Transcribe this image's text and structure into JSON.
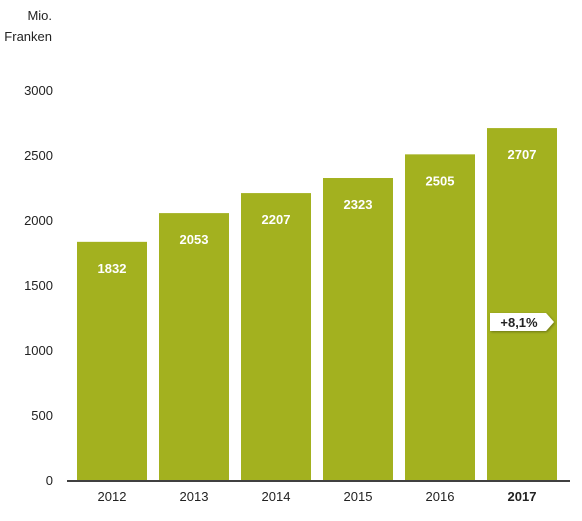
{
  "chart_data": {
    "type": "bar",
    "title": "",
    "ylabel": "Mio.\nFranken",
    "ylabel_lines": [
      "Mio.",
      "Franken"
    ],
    "xlabel": "",
    "categories": [
      "2012",
      "2013",
      "2014",
      "2015",
      "2016",
      "2017"
    ],
    "values": [
      1832,
      2053,
      2207,
      2323,
      2505,
      2707
    ],
    "data_labels": [
      "1832",
      "2053",
      "2207",
      "2323",
      "2505",
      "2707"
    ],
    "ylim": [
      0,
      3000
    ],
    "yticks": [
      0,
      500,
      1000,
      1500,
      2000,
      2500,
      3000
    ],
    "ytick_labels": [
      "0",
      "500",
      "1000",
      "1500",
      "2000",
      "2500",
      "3000"
    ],
    "highlighted_category": "2017",
    "grid": false,
    "legend": "none",
    "annotation": {
      "text": "+8,1%",
      "category": "2017"
    },
    "colors": {
      "bar": "#a3b11f",
      "bar_label": "#ffffff",
      "axis": "#000000",
      "tick_label": "#222222",
      "badge_bg": "#ffffff",
      "badge_text": "#222222"
    }
  }
}
